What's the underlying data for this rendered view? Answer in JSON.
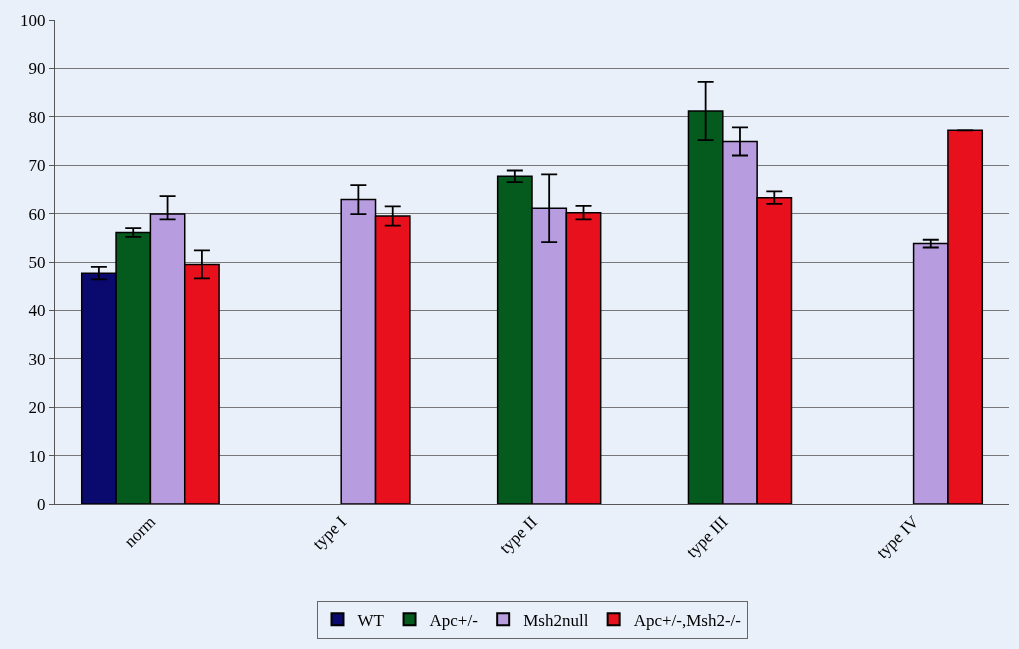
{
  "chart_data": {
    "type": "bar",
    "categories": [
      "norm",
      "type I",
      "type II",
      "type III",
      "type IV"
    ],
    "ylim": [
      0,
      100
    ],
    "yticks": [
      0,
      10,
      20,
      30,
      40,
      50,
      60,
      70,
      80,
      90,
      100
    ],
    "grid": "y",
    "legend": "bottom",
    "series": [
      {
        "name": "WT",
        "color": "#0a0a6e",
        "values": [
          47.7,
          null,
          null,
          null,
          null
        ],
        "errors": [
          1.3,
          null,
          null,
          null,
          null
        ]
      },
      {
        "name": "Apc+/-",
        "color": "#055a1e",
        "values": [
          56.1,
          null,
          67.7,
          81.2,
          null
        ],
        "errors": [
          0.9,
          null,
          1.2,
          6,
          null
        ]
      },
      {
        "name": "Msh2null",
        "color": "#b89ce0",
        "values": [
          59.9,
          62.9,
          61.1,
          74.9,
          53.8
        ],
        "errors": [
          [
            58.8,
            63.6
          ],
          3,
          7,
          2.9,
          0.8
        ]
      },
      {
        "name": "Apc+/-,Msh2-/-",
        "color": "#e8101c",
        "values": [
          49.5,
          59.5,
          60.2,
          63.3,
          77.2
        ],
        "errors": [
          2.9,
          2,
          1.4,
          1.3,
          null
        ]
      }
    ]
  }
}
